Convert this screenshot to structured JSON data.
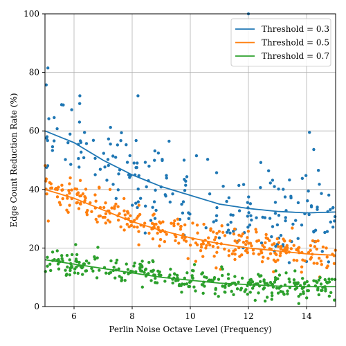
{
  "chart_data": {
    "type": "scatter",
    "xlabel": "Perlin Noise Octave Level (Frequency)",
    "ylabel": "Edge Count Reduction Rate (%)",
    "xlim": [
      5.0,
      15.0
    ],
    "ylim": [
      0,
      100
    ],
    "xticks": [
      6,
      8,
      10,
      12,
      14
    ],
    "yticks": [
      0,
      20,
      40,
      60,
      80,
      100
    ],
    "grid": true,
    "legend_position": "top-right",
    "series": [
      {
        "name": "Threshold = 0.3",
        "color": "#1f77b4",
        "trend": {
          "x": [
            5.0,
            6.0,
            7.0,
            8.0,
            9.0,
            10.0,
            11.0,
            12.0,
            13.0,
            14.0,
            15.0
          ],
          "y": [
            60,
            56,
            50,
            45,
            41,
            38,
            35,
            33.5,
            32.5,
            32,
            32.3
          ]
        },
        "point_spread": 7.5,
        "point_count": 220,
        "outliers": [
          [
            5.1,
            81.5
          ],
          [
            6.2,
            72
          ],
          [
            8.2,
            72
          ],
          [
            12.0,
            100
          ],
          [
            14.1,
            59.5
          ]
        ]
      },
      {
        "name": "Threshold = 0.5",
        "color": "#ff7f0e",
        "trend": {
          "x": [
            5.0,
            6.0,
            7.0,
            8.0,
            9.0,
            10.0,
            11.0,
            12.0,
            13.0,
            14.0,
            15.0
          ],
          "y": [
            40,
            37,
            33,
            29,
            26,
            23.5,
            21.5,
            20,
            19,
            18,
            17.5
          ]
        },
        "point_spread": 3.0,
        "point_count": 320,
        "outliers": []
      },
      {
        "name": "Threshold = 0.7",
        "color": "#2ca02c",
        "trend": {
          "x": [
            5.0,
            6.0,
            7.0,
            8.0,
            9.0,
            10.0,
            11.0,
            12.0,
            13.0,
            14.0,
            15.0
          ],
          "y": [
            16,
            14.5,
            13,
            11.5,
            10,
            9,
            8,
            7.5,
            7,
            6.8,
            6.8
          ]
        },
        "point_spread": 2.2,
        "point_count": 320,
        "outliers": []
      }
    ]
  }
}
